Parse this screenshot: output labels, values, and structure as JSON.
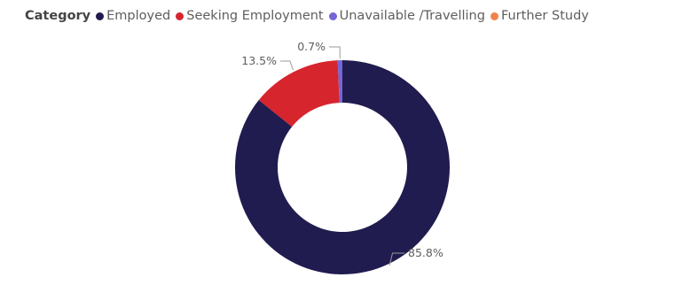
{
  "chart_data": {
    "type": "pie",
    "variant": "donut",
    "legend_title": "Category",
    "legend_position": "top-left",
    "categories": [
      "Employed",
      "Seeking Employment",
      "Unavailable /Travelling",
      "Further Study"
    ],
    "values": [
      85.8,
      13.5,
      0.7,
      0.0
    ],
    "value_labels": [
      "85.8%",
      "13.5%",
      "0.7%",
      ""
    ],
    "colors": [
      "#201c4f",
      "#d7252e",
      "#7467d5",
      "#f2824c"
    ]
  }
}
